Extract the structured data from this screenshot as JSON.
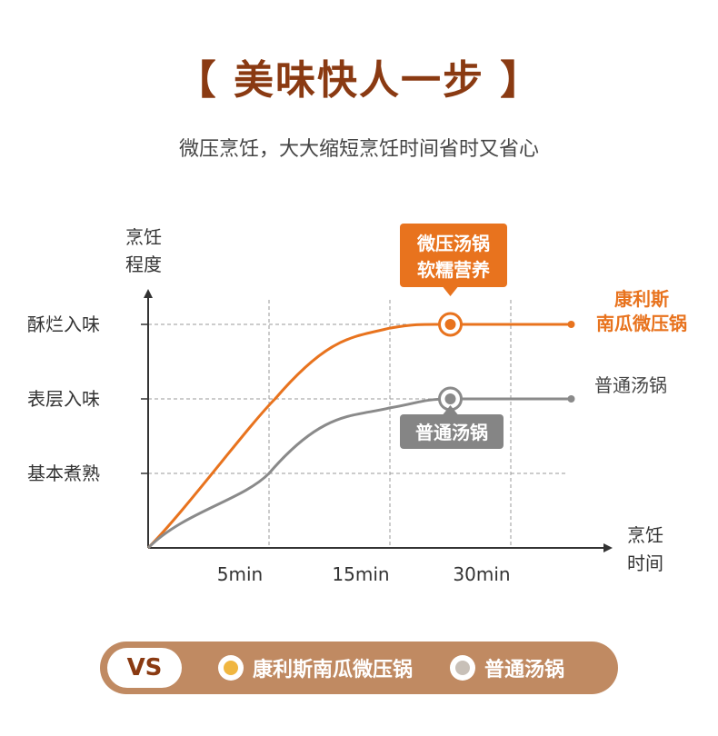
{
  "page": {
    "title": "【 美味快人一步 】",
    "subtitle": "微压烹饪，大大缩短烹饪时间省时又省心"
  },
  "chart_data": {
    "type": "line",
    "ylabel_line1": "烹饪",
    "ylabel_line2": "程度",
    "xlabel_line1": "烹饪",
    "xlabel_line2": "时间",
    "y_levels": [
      "基本煮熟",
      "表层入味",
      "酥烂入味"
    ],
    "x_ticks": [
      "5min",
      "15min",
      "30min"
    ],
    "grid": true,
    "series": [
      {
        "name_line1": "康利斯",
        "name_line2": "南瓜微压锅",
        "color": "#e8731e",
        "points": [
          [
            0,
            0
          ],
          [
            1.05,
            2.0
          ],
          [
            2,
            2.95
          ],
          [
            2.5,
            3.0
          ],
          [
            3.5,
            3.0
          ]
        ],
        "marker_at": 2.5,
        "callout_line1": "微压汤锅",
        "callout_line2": "软糯营养"
      },
      {
        "name": "普通汤锅",
        "color": "#8a8a8a",
        "points": [
          [
            0,
            0
          ],
          [
            1,
            1.0
          ],
          [
            2,
            1.88
          ],
          [
            2.5,
            2.0
          ],
          [
            3.5,
            2.0
          ]
        ],
        "marker_at": 2.5,
        "callout": "普通汤锅"
      }
    ]
  },
  "legend": {
    "vs": "VS",
    "item1": "康利斯南瓜微压锅",
    "item2": "普通汤锅"
  },
  "colors": {
    "title": "#8a3a12",
    "orange": "#e8731e",
    "gray": "#8a8a8a",
    "pill": "#c08a62"
  }
}
